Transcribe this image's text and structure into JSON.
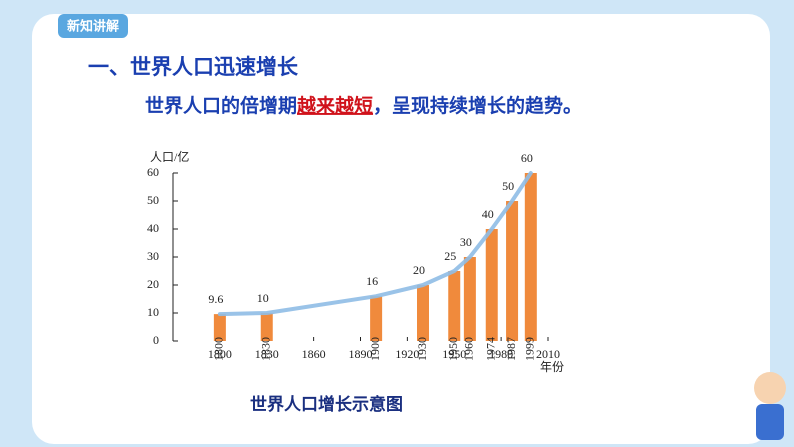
{
  "tab": "新知讲解",
  "heading": "一、世界人口迅速增长",
  "sentence": {
    "before": "世界人口的倍增期",
    "emphasis": "越来越短",
    "after": "，呈现持续增长的趋势。"
  },
  "chart_data": {
    "type": "bar",
    "title": "世界人口增长示意图",
    "y_label": "人口/亿",
    "x_label": "年份",
    "x": [
      1800,
      1830,
      1900,
      1930,
      1950,
      1960,
      1974,
      1987,
      1999
    ],
    "values": [
      9.6,
      10,
      16,
      20,
      25,
      30,
      40,
      50,
      60
    ],
    "color": "#f08a3c",
    "trend_color": "#8fbde6",
    "xlim": [
      1770,
      2010
    ],
    "xticks": [
      1800,
      1830,
      1860,
      1890,
      1920,
      1950,
      1980,
      2010
    ],
    "ylim": [
      0,
      60
    ],
    "yticks": [
      0,
      10,
      20,
      30,
      40,
      50,
      60
    ]
  }
}
